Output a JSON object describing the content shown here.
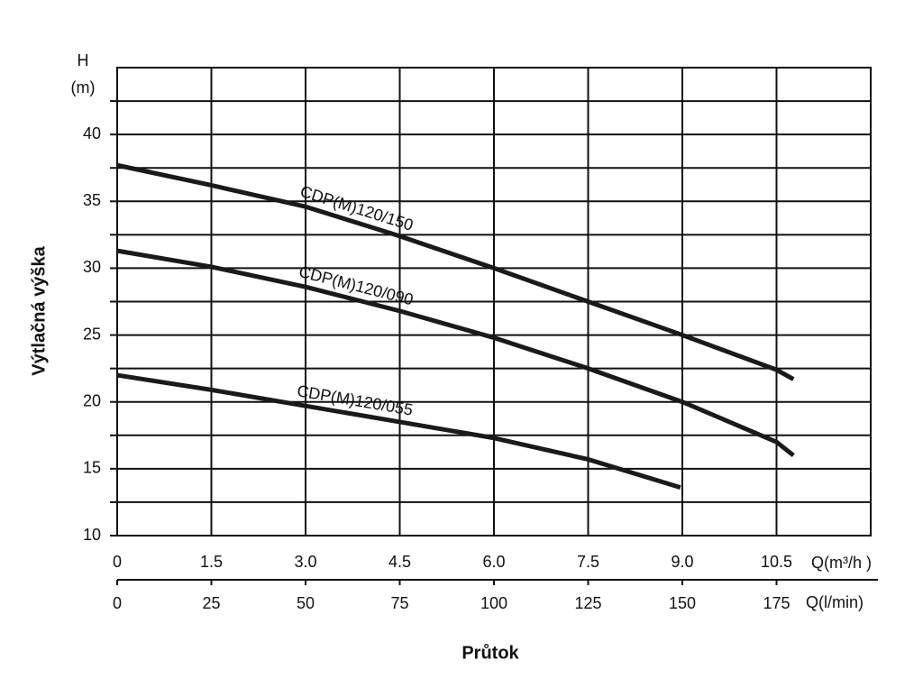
{
  "chart_data": {
    "type": "line",
    "y_label_top": "H",
    "y_label_unit": "(m)",
    "y_title": "Výtlačná výška",
    "x_title": "Průtok",
    "x_unit_label": "Q(m³/h )",
    "x2_unit_label": "Q(l/min)",
    "xlim": [
      0,
      12
    ],
    "xticks": [
      0,
      1.5,
      {
        "value": 3,
        "label": "3.0"
      },
      4.5,
      {
        "value": 6,
        "label": "6.0"
      },
      7.5,
      {
        "value": 9,
        "label": "9.0"
      },
      10.5
    ],
    "x2lim": [
      0,
      200
    ],
    "x2ticks": [
      0,
      25,
      50,
      75,
      100,
      125,
      150,
      175
    ],
    "ylim": [
      10,
      45
    ],
    "yticks": [
      10,
      15,
      20,
      25,
      30,
      35,
      40
    ],
    "y_minor_ticks": [
      12.5,
      17.5,
      22.5,
      27.5,
      32.5,
      37.5,
      42.5
    ],
    "grid": true,
    "series": [
      {
        "name": "CDP(M)120/150",
        "color": "#1a1a1a",
        "x": [
          0,
          1.5,
          3,
          4.5,
          6,
          7.5,
          9,
          10.5,
          10.77
        ],
        "values": [
          37.7,
          36.2,
          34.6,
          32.4,
          30.0,
          27.5,
          25.0,
          22.4,
          21.7
        ]
      },
      {
        "name": "CDP(M)120/090",
        "color": "#1a1a1a",
        "x": [
          0,
          1.5,
          3,
          4.5,
          6,
          7.5,
          9,
          10.5,
          10.77
        ],
        "values": [
          31.3,
          30.1,
          28.6,
          26.8,
          24.8,
          22.5,
          20.0,
          17.0,
          16.0
        ]
      },
      {
        "name": "CDP(M)120/055",
        "color": "#1a1a1a",
        "x": [
          0,
          1.5,
          3,
          4.5,
          6,
          7.5,
          8.97
        ],
        "values": [
          22.0,
          20.9,
          19.7,
          18.5,
          17.3,
          15.7,
          13.6
        ]
      }
    ]
  }
}
